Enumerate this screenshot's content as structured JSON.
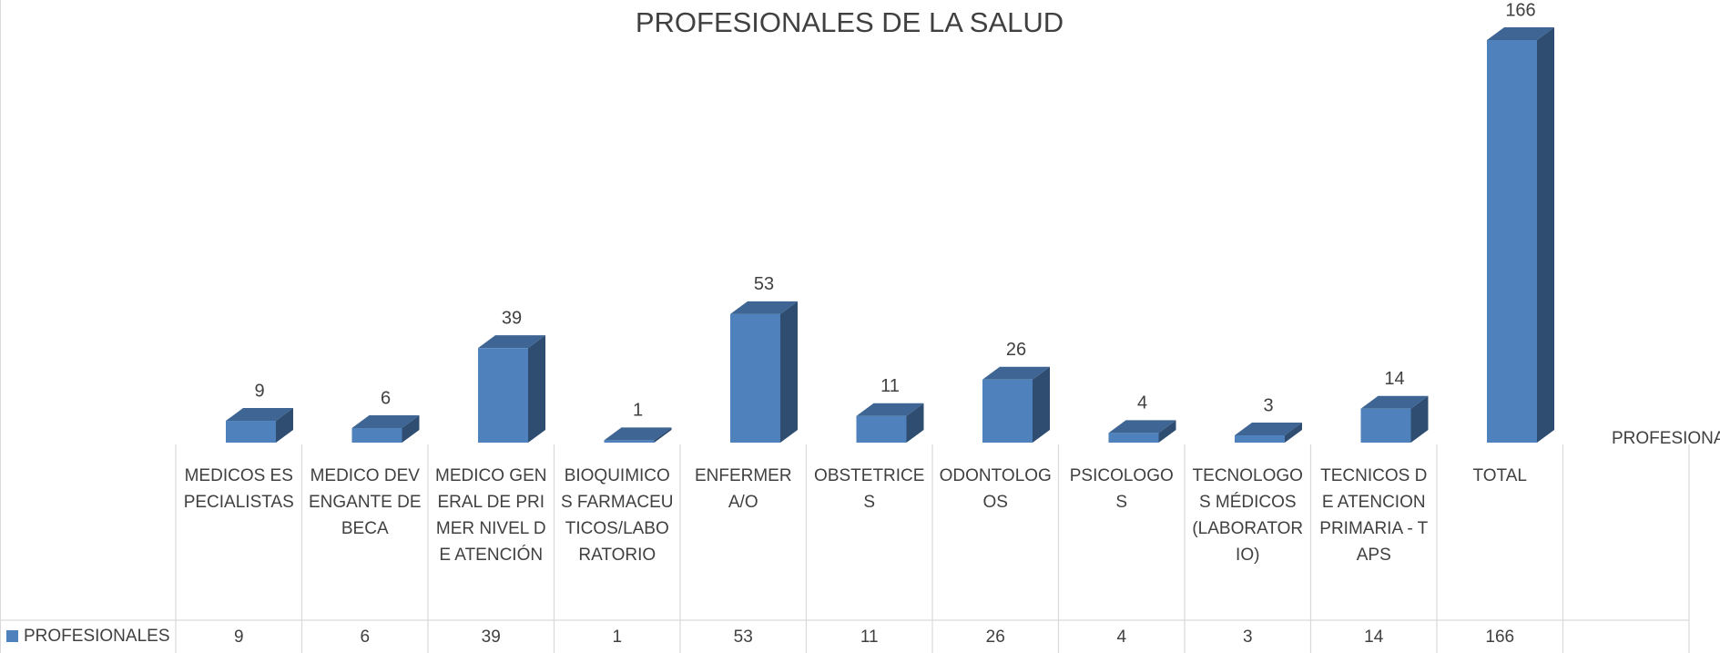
{
  "chart_data": {
    "type": "bar",
    "title": "PROFESIONALES DE LA SALUD",
    "categories": [
      "MEDICOS ESPECIALISTAS",
      "MEDICO DEVENGANTE DE BECA",
      "MEDICO GENERAL DE PRIMER NIVEL  DE ATENCIÓN",
      "BIOQUIMICOS FARMACEUTICOS/LABORATORIO",
      "ENFERMERA/O",
      "OBSTETRICES",
      "ODONTOLOGOS",
      "PSICOLOGOS",
      "TECNOLOGOS MÉDICOS (LABORATORIO)",
      "TECNICOS DE ATENCION PRIMARIA - TAPS",
      "TOTAL"
    ],
    "series": [
      {
        "name": "PROFESIONALES",
        "color": "#4f81bd",
        "values": [
          9,
          6,
          39,
          1,
          53,
          11,
          26,
          4,
          3,
          14,
          166
        ]
      }
    ],
    "legend": "right",
    "data_table": true
  }
}
